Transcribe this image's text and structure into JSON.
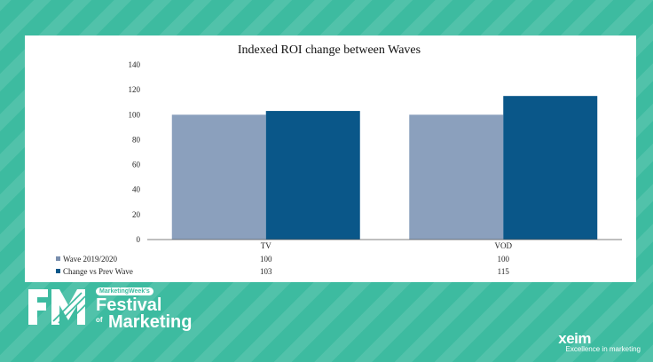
{
  "chart_data": {
    "type": "bar",
    "title": "Indexed ROI change between Waves",
    "categories": [
      "TV",
      "VOD"
    ],
    "series": [
      {
        "name": "Wave 2019/2020",
        "values": [
          100,
          100
        ],
        "color": "#8ba0bd",
        "marker_color": "#7a8fae"
      },
      {
        "name": "Change vs Prev Wave",
        "values": [
          103,
          115
        ],
        "color": "#0a5789",
        "marker_color": "#0a5789"
      }
    ],
    "ylim": [
      0,
      140
    ],
    "yticks": [
      "0",
      "20",
      "40",
      "60",
      "80",
      "100",
      "120",
      "140"
    ],
    "grid": false,
    "legend": "data-table-below",
    "data_table": true
  },
  "branding": {
    "event_badge": "MarketingWeek's",
    "event_line1": "Festival",
    "event_of": "of",
    "event_line2": "Marketing",
    "company": "xeim",
    "company_tagline": "Excellence in marketing"
  },
  "colors": {
    "background": "#3dbba0",
    "panel": "#ffffff"
  }
}
